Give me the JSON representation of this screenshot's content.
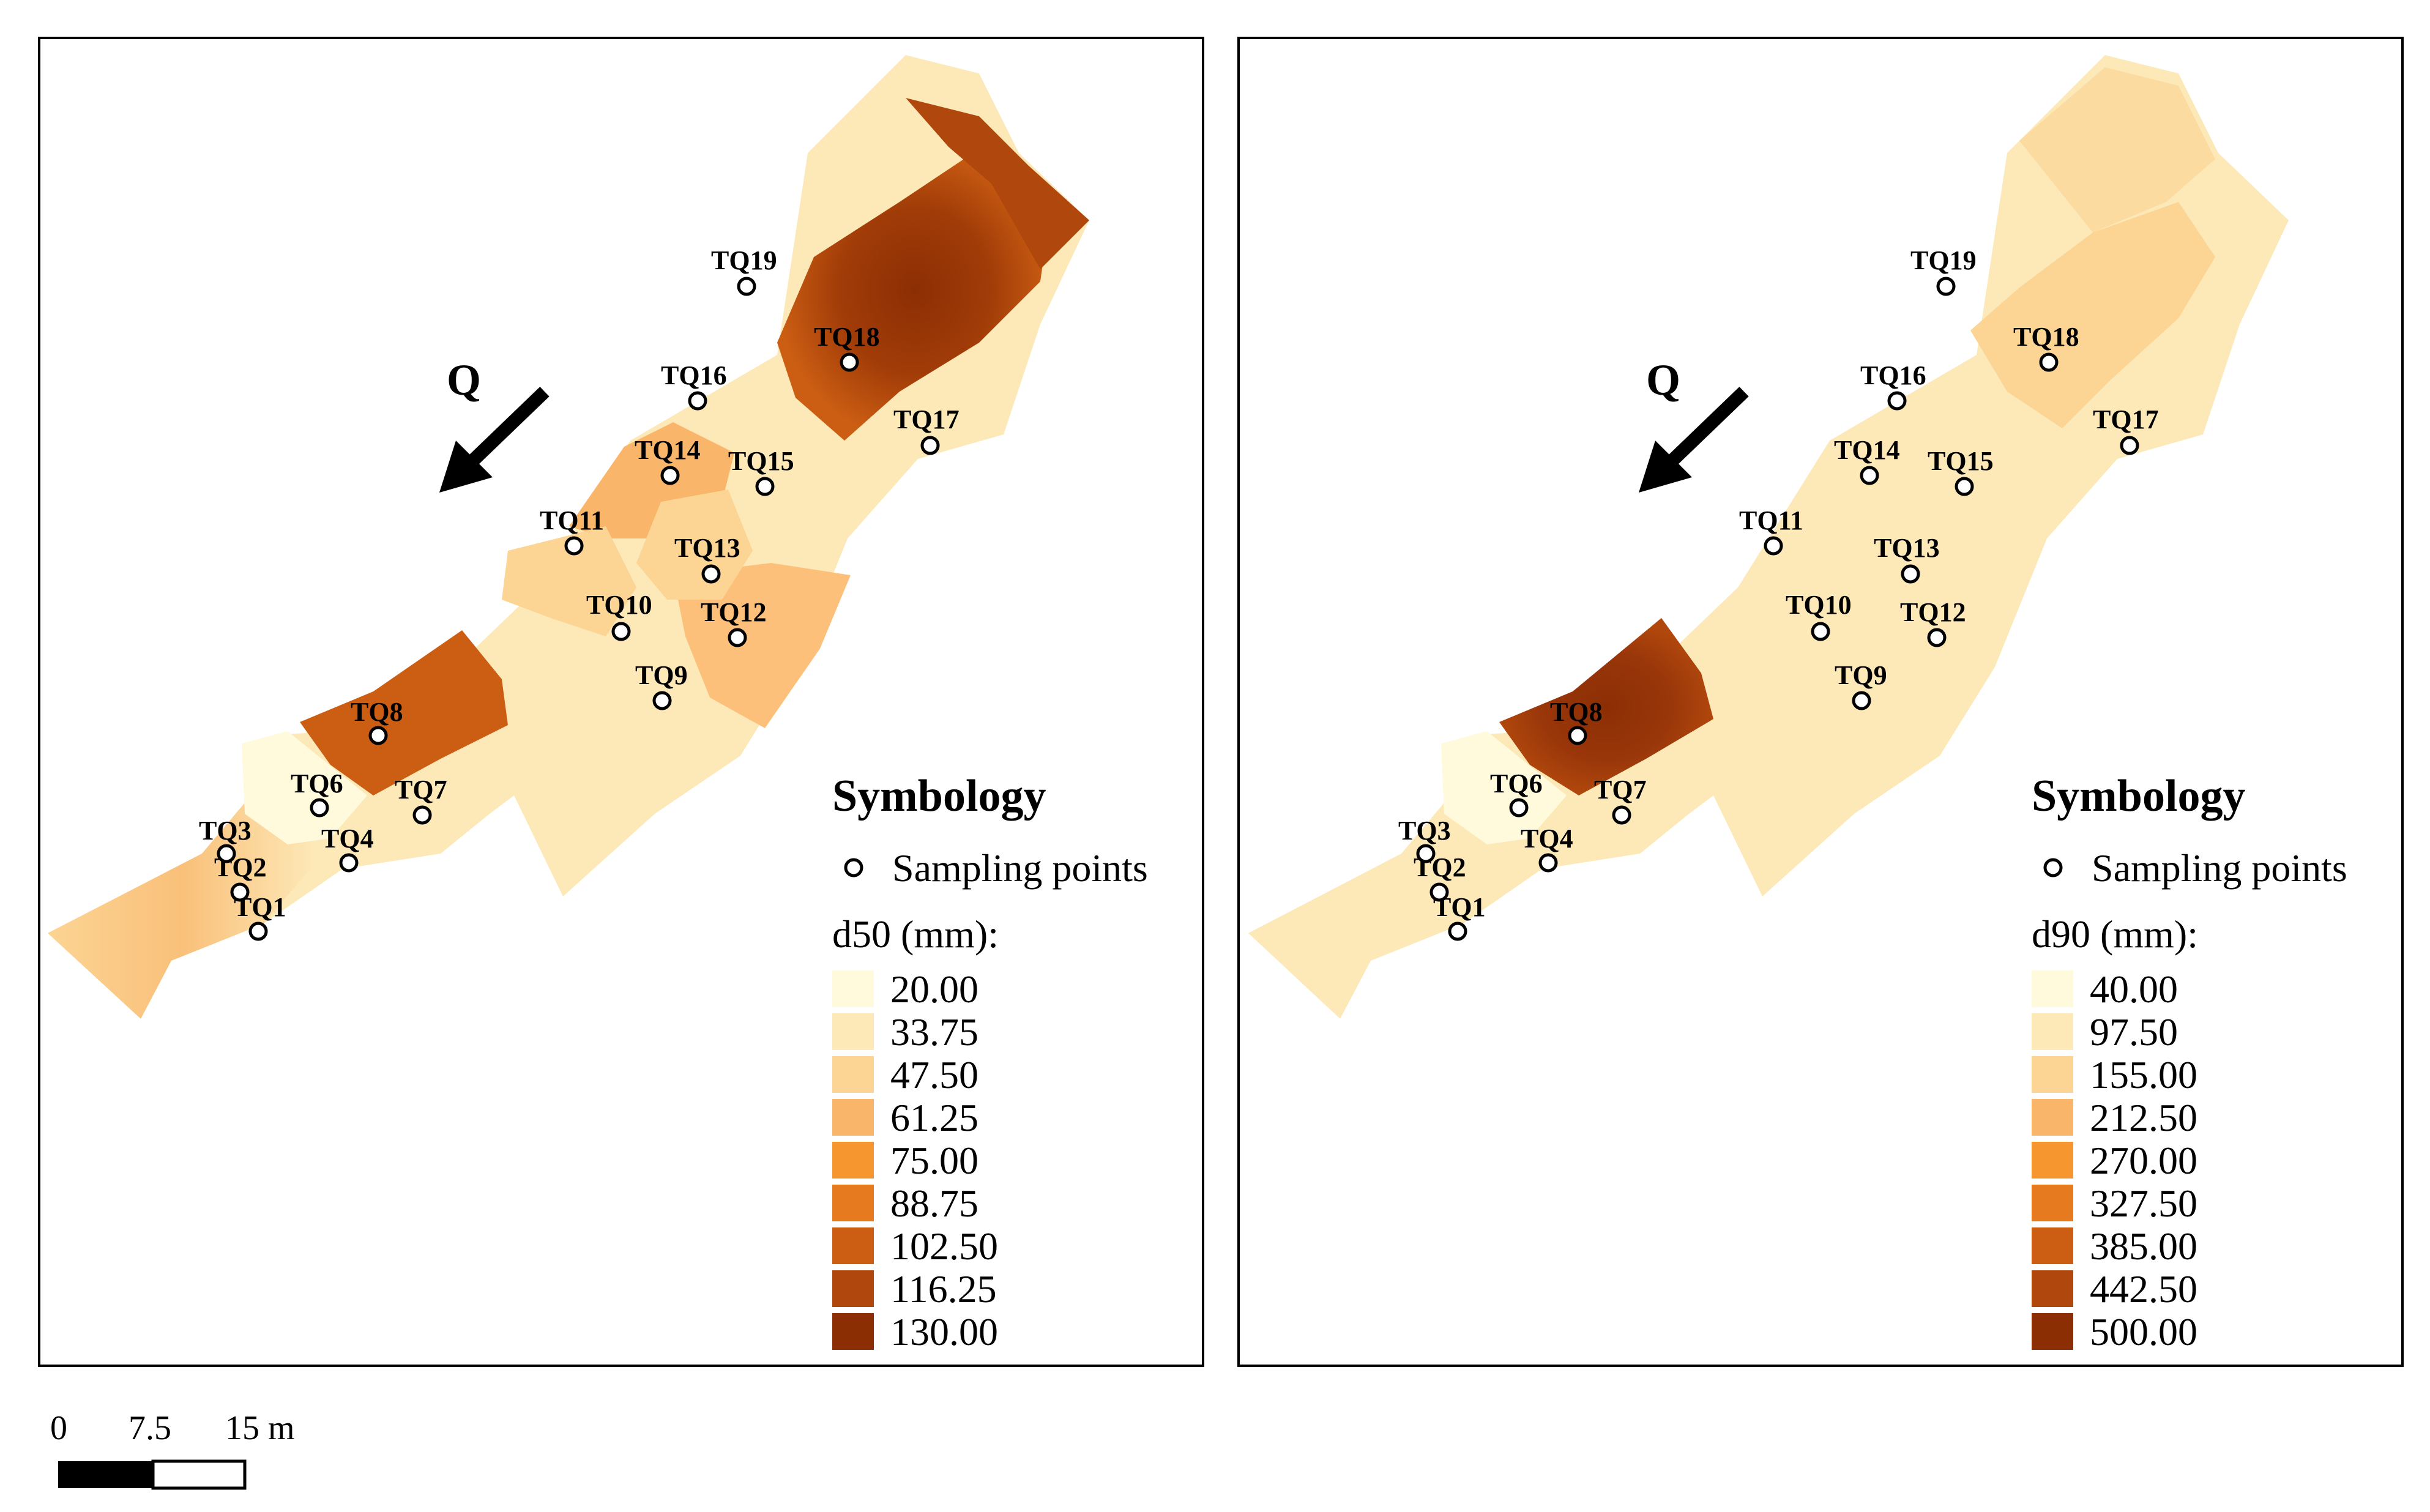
{
  "panels": [
    {
      "id": "d50",
      "flow_label": "Q",
      "legend": {
        "title": "Symbology",
        "points_label": "Sampling points",
        "variable_label": "d50 (mm):",
        "classes": [
          "20.00",
          "33.75",
          "47.50",
          "61.25",
          "75.00",
          "88.75",
          "102.50",
          "116.25",
          "130.00"
        ]
      }
    },
    {
      "id": "d90",
      "flow_label": "Q",
      "legend": {
        "title": "Symbology",
        "points_label": "Sampling points",
        "variable_label": "d90 (mm):",
        "classes": [
          "40.00",
          "97.50",
          "155.00",
          "212.50",
          "270.00",
          "327.50",
          "385.00",
          "442.50",
          "500.00"
        ]
      }
    }
  ],
  "color_ramp": [
    "#fffadb",
    "#fde9b8",
    "#fcd493",
    "#f9b56a",
    "#f6962e",
    "#e57a1f",
    "#cc5e13",
    "#b0470c",
    "#8c2e04"
  ],
  "sampling_points": [
    "TQ1",
    "TQ2",
    "TQ3",
    "TQ4",
    "TQ6",
    "TQ7",
    "TQ8",
    "TQ9",
    "TQ10",
    "TQ11",
    "TQ12",
    "TQ13",
    "TQ14",
    "TQ15",
    "TQ16",
    "TQ17",
    "TQ18",
    "TQ19"
  ],
  "scalebar": {
    "labels": [
      "0",
      "7.5",
      "15 m"
    ]
  }
}
